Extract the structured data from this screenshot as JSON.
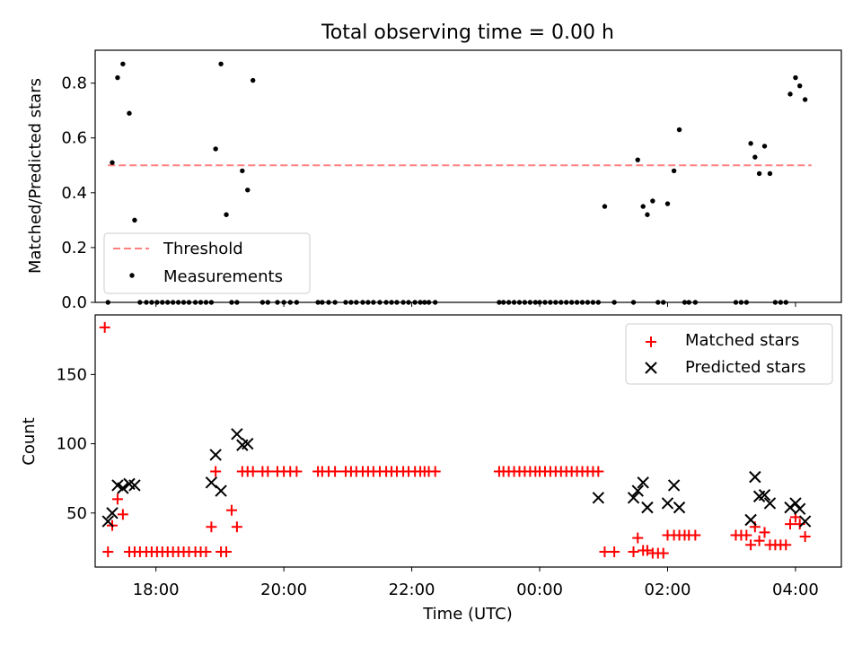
{
  "chart_data": [
    {
      "type": "scatter",
      "title": "Total observing time = 0.00 h",
      "xlabel": "",
      "ylabel": "Matched/Predicted stars",
      "xlim": [
        "17:03",
        "04:43"
      ],
      "ylim": [
        0,
        0.92
      ],
      "yticks": [
        0.0,
        0.2,
        0.4,
        0.6,
        0.8
      ],
      "ytick_labels": [
        "0.0",
        "0.2",
        "0.4",
        "0.6",
        "0.8"
      ],
      "grid": false,
      "legend": {
        "position": "lower-left",
        "entries": [
          "Threshold",
          "Measurements"
        ]
      },
      "series": [
        {
          "name": "Threshold",
          "style": "dashed-line",
          "color": "#ff8080",
          "x": [
            "17:15",
            "04:15"
          ],
          "y": [
            0.5,
            0.5
          ]
        },
        {
          "name": "Measurements",
          "style": "dot",
          "color": "#000000",
          "x": [
            "17:15",
            "17:19",
            "17:24",
            "17:29",
            "17:35",
            "17:40",
            "17:45",
            "17:51",
            "17:56",
            "18:01",
            "18:06",
            "18:11",
            "18:16",
            "18:21",
            "18:26",
            "18:31",
            "18:37",
            "18:42",
            "18:47",
            "18:52",
            "18:56",
            "19:01",
            "19:06",
            "19:11",
            "19:16",
            "19:21",
            "19:26",
            "19:31",
            "19:40",
            "19:45",
            "19:54",
            "20:00",
            "20:06",
            "20:12",
            "20:32",
            "20:36",
            "20:42",
            "20:48",
            "20:58",
            "21:03",
            "21:08",
            "21:14",
            "21:19",
            "21:24",
            "21:30",
            "21:36",
            "21:41",
            "21:46",
            "21:52",
            "21:57",
            "22:03",
            "22:08",
            "22:12",
            "22:16",
            "22:22",
            "23:22",
            "23:26",
            "23:31",
            "23:36",
            "23:41",
            "23:46",
            "23:51",
            "23:56",
            "00:00",
            "00:05",
            "00:10",
            "00:15",
            "00:20",
            "00:25",
            "00:30",
            "00:35",
            "00:40",
            "00:45",
            "00:50",
            "00:55",
            "01:01",
            "01:10",
            "01:28",
            "01:32",
            "01:37",
            "01:41",
            "01:46",
            "01:51",
            "01:56",
            "02:00",
            "02:06",
            "02:11",
            "02:16",
            "02:20",
            "02:26",
            "03:04",
            "03:09",
            "03:14",
            "03:18",
            "03:22",
            "03:26",
            "03:31",
            "03:36",
            "03:41",
            "03:46",
            "03:51",
            "03:55",
            "04:00",
            "04:04",
            "04:09"
          ],
          "y": [
            0.0,
            0.51,
            0.82,
            0.87,
            0.69,
            0.3,
            0.0,
            0.0,
            0.0,
            0.0,
            0.0,
            0.0,
            0.0,
            0.0,
            0.0,
            0.0,
            0.0,
            0.0,
            0.0,
            0.0,
            0.56,
            0.87,
            0.32,
            0.0,
            0.0,
            0.48,
            0.41,
            0.81,
            0.0,
            0.0,
            0.0,
            0.0,
            0.0,
            0.0,
            0.0,
            0.0,
            0.0,
            0.0,
            0.0,
            0.0,
            0.0,
            0.0,
            0.0,
            0.0,
            0.0,
            0.0,
            0.0,
            0.0,
            0.0,
            0.0,
            0.0,
            0.0,
            0.0,
            0.0,
            0.0,
            0.0,
            0.0,
            0.0,
            0.0,
            0.0,
            0.0,
            0.0,
            0.0,
            0.0,
            0.0,
            0.0,
            0.0,
            0.0,
            0.0,
            0.0,
            0.0,
            0.0,
            0.0,
            0.0,
            0.0,
            0.35,
            0.0,
            0.0,
            0.52,
            0.35,
            0.32,
            0.37,
            0.0,
            0.0,
            0.36,
            0.48,
            0.63,
            0.0,
            0.0,
            0.0,
            0.0,
            0.0,
            0.0,
            0.58,
            0.53,
            0.47,
            0.57,
            0.47,
            0.0,
            0.0,
            0.0,
            0.76,
            0.82,
            0.79,
            0.74
          ]
        }
      ]
    },
    {
      "type": "scatter",
      "title": "",
      "xlabel": "Time (UTC)",
      "ylabel": "Count",
      "xlim": [
        "17:03",
        "04:43"
      ],
      "ylim": [
        11,
        193
      ],
      "yticks": [
        50,
        100,
        150
      ],
      "ytick_labels": [
        "50",
        "100",
        "150"
      ],
      "xticks": [
        "18:00",
        "20:00",
        "22:00",
        "00:00",
        "02:00",
        "04:00"
      ],
      "xtick_labels": [
        "18:00",
        "20:00",
        "22:00",
        "00:00",
        "02:00",
        "04:00"
      ],
      "grid": false,
      "legend": {
        "position": "upper-right",
        "entries": [
          "Matched stars",
          "Predicted stars"
        ]
      },
      "series": [
        {
          "name": "Matched stars",
          "marker": "plus",
          "color": "#ff0000",
          "x": [
            "17:12",
            "17:15",
            "17:19",
            "17:24",
            "17:29",
            "17:35",
            "17:40",
            "17:45",
            "17:51",
            "17:56",
            "18:01",
            "18:06",
            "18:11",
            "18:16",
            "18:21",
            "18:26",
            "18:31",
            "18:37",
            "18:42",
            "18:47",
            "18:52",
            "18:56",
            "19:01",
            "19:06",
            "19:11",
            "19:16",
            "19:21",
            "19:26",
            "19:31",
            "19:40",
            "19:45",
            "19:54",
            "20:00",
            "20:06",
            "20:12",
            "20:32",
            "20:36",
            "20:42",
            "20:48",
            "20:58",
            "21:03",
            "21:08",
            "21:14",
            "21:19",
            "21:24",
            "21:30",
            "21:36",
            "21:41",
            "21:46",
            "21:52",
            "21:57",
            "22:03",
            "22:08",
            "22:12",
            "22:16",
            "22:22",
            "23:22",
            "23:26",
            "23:31",
            "23:36",
            "23:41",
            "23:46",
            "23:51",
            "23:56",
            "00:00",
            "00:05",
            "00:10",
            "00:15",
            "00:20",
            "00:25",
            "00:30",
            "00:35",
            "00:40",
            "00:45",
            "00:50",
            "00:55",
            "01:01",
            "01:10",
            "01:28",
            "01:32",
            "01:37",
            "01:41",
            "01:46",
            "01:51",
            "01:56",
            "02:00",
            "02:06",
            "02:11",
            "02:16",
            "02:20",
            "02:26",
            "03:04",
            "03:09",
            "03:14",
            "03:18",
            "03:22",
            "03:26",
            "03:31",
            "03:36",
            "03:41",
            "03:46",
            "03:51",
            "03:55",
            "04:00",
            "04:04",
            "04:09"
          ],
          "y": [
            184,
            22,
            41,
            60,
            49,
            22,
            22,
            22,
            22,
            22,
            22,
            22,
            22,
            22,
            22,
            22,
            22,
            22,
            22,
            22,
            40,
            80,
            22,
            22,
            52,
            40,
            80,
            80,
            80,
            80,
            80,
            80,
            80,
            80,
            80,
            80,
            80,
            80,
            80,
            80,
            80,
            80,
            80,
            80,
            80,
            80,
            80,
            80,
            80,
            80,
            80,
            80,
            80,
            80,
            80,
            80,
            80,
            80,
            80,
            80,
            80,
            80,
            80,
            80,
            80,
            80,
            80,
            80,
            80,
            80,
            80,
            80,
            80,
            80,
            80,
            80,
            22,
            22,
            22,
            32,
            23,
            23,
            21,
            21,
            21,
            34,
            34,
            34,
            34,
            34,
            34,
            34,
            34,
            34,
            27,
            40,
            30,
            36,
            27,
            27,
            27,
            27,
            42,
            47,
            42,
            33
          ]
        },
        {
          "name": "Predicted stars",
          "marker": "x",
          "color": "#000000",
          "x": [
            "17:15",
            "17:19",
            "17:24",
            "17:29",
            "17:35",
            "17:40",
            "18:52",
            "18:56",
            "19:01",
            "19:16",
            "19:21",
            "19:26",
            "00:55",
            "01:28",
            "01:32",
            "01:37",
            "01:41",
            "02:00",
            "02:06",
            "02:11",
            "03:18",
            "03:22",
            "03:26",
            "03:31",
            "03:36",
            "03:55",
            "04:00",
            "04:04",
            "04:09"
          ],
          "y": [
            44,
            50,
            70,
            68,
            71,
            70,
            72,
            92,
            66,
            107,
            99,
            100,
            61,
            61,
            66,
            72,
            54,
            57,
            70,
            54,
            45,
            76,
            62,
            63,
            57,
            54,
            57,
            53,
            44
          ]
        }
      ]
    }
  ]
}
